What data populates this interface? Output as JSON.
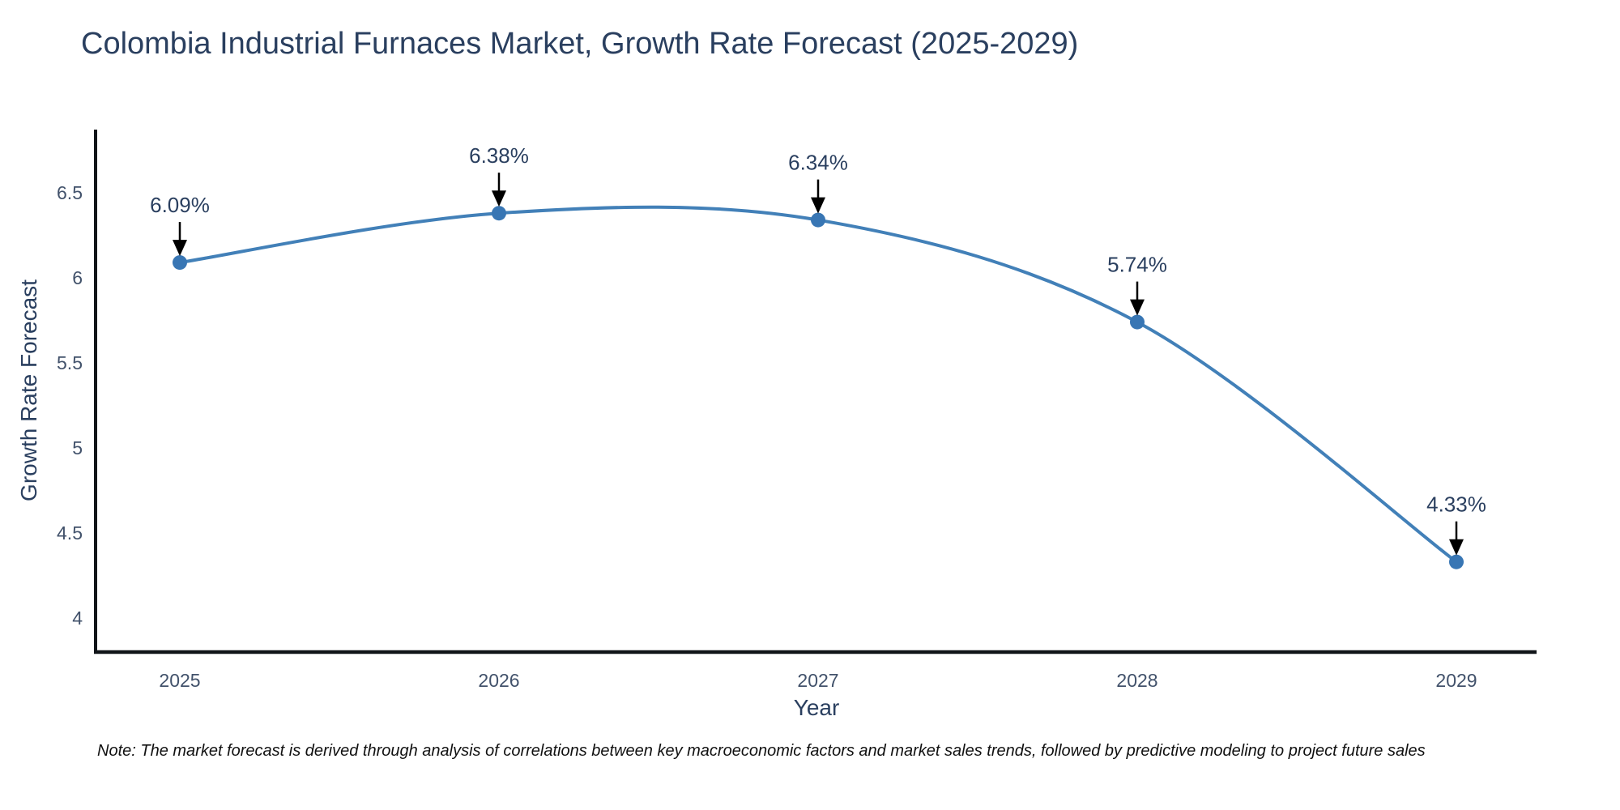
{
  "title": {
    "text": "Colombia Industrial Furnaces Market, Growth Rate Forecast (2025-2029)",
    "color": "#2a3f5f"
  },
  "chart_data": {
    "type": "line",
    "title": "Colombia Industrial Furnaces Market, Growth Rate Forecast (2025-2029)",
    "xlabel": "Year",
    "ylabel": "Growth Rate Forecast",
    "x": [
      2025,
      2026,
      2027,
      2028,
      2029
    ],
    "x_tick_labels": [
      "2025",
      "2026",
      "2027",
      "2028",
      "2029"
    ],
    "values": [
      6.09,
      6.38,
      6.34,
      5.74,
      4.33
    ],
    "point_labels": [
      "6.09%",
      "6.38%",
      "6.34%",
      "5.74%",
      "4.33%"
    ],
    "yticks": [
      4,
      4.5,
      5,
      5.5,
      6,
      6.5
    ],
    "ytick_labels": [
      "4",
      "4.5",
      "5",
      "5.5",
      "6",
      "6.5"
    ],
    "ylim": [
      3.78,
      6.87
    ],
    "grid": false,
    "legend_position": "none",
    "line_shape": "spline",
    "line_color": "#4280b8",
    "marker_color": "#3876b4",
    "annotation_color": "#2a3f5f",
    "arrow_color": "#000000",
    "axis_line_color": "#101418",
    "tick_label_color": "#42526b"
  },
  "note": {
    "text": "Note: The market forecast is derived through analysis of correlations between key macroeconomic factors and market sales trends, followed by predictive modeling to project future sales"
  }
}
